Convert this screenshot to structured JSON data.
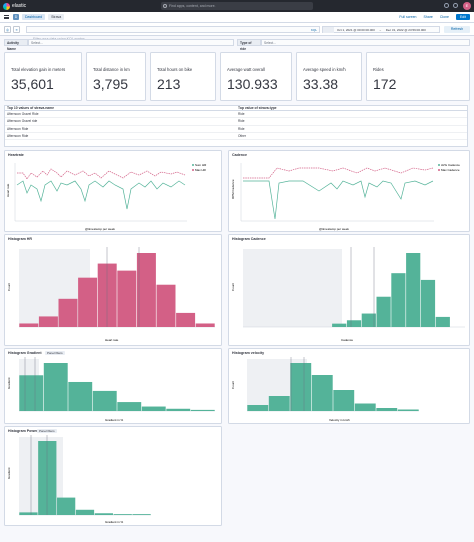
{
  "topbar": {
    "logo_text": "elastic",
    "search_placeholder": "Find apps, content, and more.",
    "avatar_initial": "E"
  },
  "subbar": {
    "space_initial": "D",
    "breadcrumbs": [
      "Dashboard",
      "Strava"
    ],
    "links": [
      "Full screen",
      "Share",
      "Clone"
    ],
    "edit_label": "Edit"
  },
  "querybar": {
    "placeholder": "Filter your data using KQL syntax",
    "language": "KQL",
    "date_from": "Oct 1, 2021 @ 00:00:00.000",
    "arrow": "→",
    "date_to": "Dec 31, 2022 @ 23:59:00.000",
    "refresh_label": "Refresh"
  },
  "controls": {
    "activity_label": "Activity Name",
    "activity_placeholder": "Select...",
    "type_label": "Type of ride",
    "type_placeholder": "Select..."
  },
  "metrics": [
    {
      "label": "Total elevation gain in meters",
      "value": "35,601"
    },
    {
      "label": "Total distance in km",
      "value": "3,795"
    },
    {
      "label": "Total hours on bike",
      "value": "213"
    },
    {
      "label": "Average watt overall",
      "value": "130.933"
    },
    {
      "label": "Average speed in km/h",
      "value": "33.38"
    },
    {
      "label": "Rides",
      "value": "172"
    }
  ],
  "table": {
    "headers": [
      "Top 10 values of strava.name",
      "Top value of strava.type"
    ],
    "rows": [
      [
        "Afternoon Gravel Ride",
        "Ride"
      ],
      [
        "Afternoon Gravel ride",
        "Ride"
      ],
      [
        "Afternoon Ride",
        "Ride"
      ],
      [
        "Afternoon Ride",
        "Other"
      ]
    ]
  },
  "heartrate": {
    "title": "Heartrate",
    "ylabel": "Heart rate",
    "xlabel": "@timestamp per week",
    "legend": [
      "Sum HR",
      "Max HR"
    ],
    "colors": [
      "#54b399",
      "#d36086"
    ]
  },
  "cadence": {
    "title": "Cadence",
    "ylabel": "RPM Cadence",
    "xlabel": "@timestamp per week",
    "legend": [
      "AVG Cadence",
      "Max Cadence"
    ],
    "colors": [
      "#54b399",
      "#d36086"
    ]
  },
  "hist_hr": {
    "title": "Histogram HR",
    "xlabel": "Heart rate",
    "ylabel": "Count",
    "color": "#d36086",
    "values": [
      1,
      3,
      8,
      14,
      18,
      16,
      21,
      12,
      4,
      1
    ]
  },
  "hist_cadence": {
    "title": "Histogram Cadence",
    "xlabel": "Cadence",
    "ylabel": "Count",
    "color": "#54b399",
    "values": [
      0,
      0,
      0,
      0,
      0,
      0,
      1,
      2,
      4,
      9,
      16,
      22,
      14,
      3,
      0
    ]
  },
  "hist_gradient": {
    "title": "Histogram Gradient",
    "badge": "Panel filters",
    "xlabel": "Gradient in %",
    "ylabel": "Gradient",
    "color": "#54b399",
    "values": [
      32,
      43,
      26,
      18,
      8,
      4,
      2,
      1
    ]
  },
  "hist_velocity": {
    "title": "Histogram velocity",
    "xlabel": "Velocity in km/h",
    "ylabel": "Count",
    "color": "#54b399",
    "values": [
      4,
      10,
      32,
      24,
      14,
      5,
      2,
      1
    ]
  },
  "hist_power": {
    "title": "Histogram Power",
    "badge": "Panel filters",
    "xlabel": "Gradient in %",
    "ylabel": "Gradient",
    "color": "#54b399",
    "values": [
      3,
      85,
      20,
      6,
      2,
      1,
      1
    ]
  }
}
